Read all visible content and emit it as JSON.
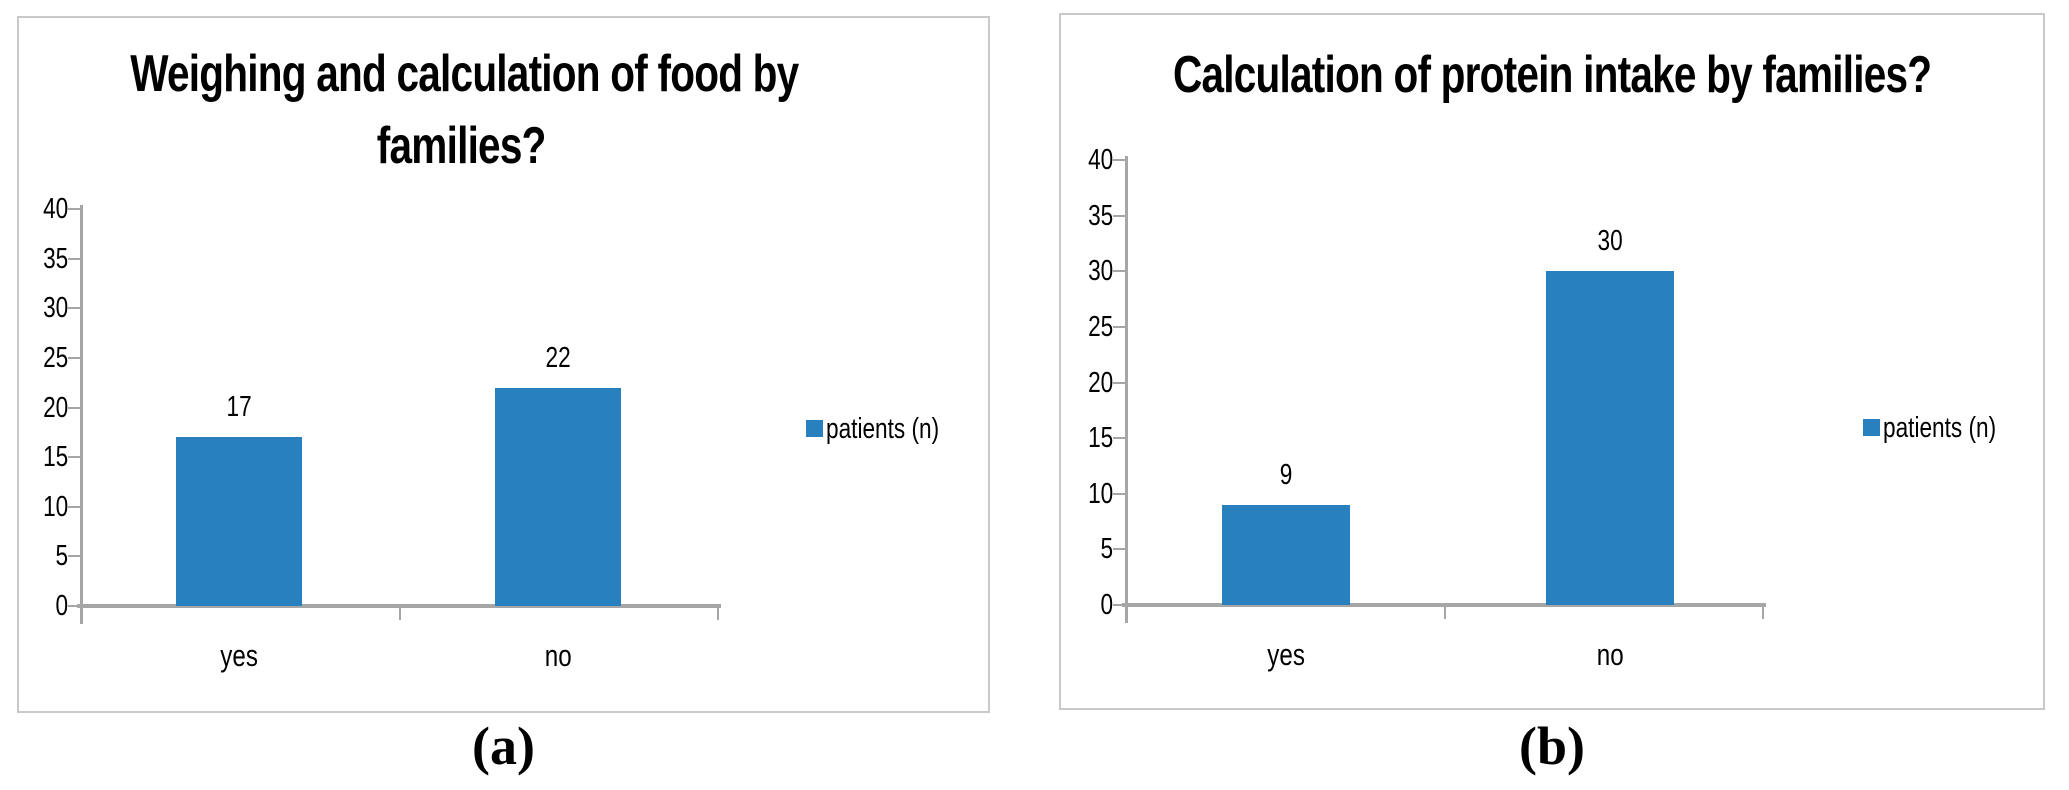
{
  "figure": {
    "panels": [
      {
        "caption": "(a)",
        "title_lines": [
          "Weighing and calculation of food by",
          "families?"
        ]
      },
      {
        "caption": "(b)",
        "title_lines": [
          "Calculation of protein intake by families?"
        ]
      }
    ]
  },
  "chart_data": [
    {
      "type": "bar",
      "title": "Weighing and calculation of food by families?",
      "categories": [
        "yes",
        "no"
      ],
      "values": [
        17,
        22
      ],
      "series": [
        {
          "name": "patients (n)",
          "values": [
            17,
            22
          ]
        }
      ],
      "data_labels": [
        "17",
        "22"
      ],
      "legend": "patients (n)",
      "legend_position": "right",
      "xlabel": "",
      "ylabel": "",
      "ylim": [
        0,
        40
      ],
      "ytick_step": 5,
      "grid": false
    },
    {
      "type": "bar",
      "title": "Calculation of protein intake by families?",
      "categories": [
        "yes",
        "no"
      ],
      "values": [
        9,
        30
      ],
      "series": [
        {
          "name": "patients (n)",
          "values": [
            9,
            30
          ]
        }
      ],
      "data_labels": [
        "9",
        "30"
      ],
      "legend": "patients (n)",
      "legend_position": "right",
      "xlabel": "",
      "ylabel": "",
      "ylim": [
        0,
        40
      ],
      "ytick_step": 5,
      "grid": false
    }
  ],
  "colors": {
    "bar": "#2881be",
    "axis": "#a6a6a6",
    "panel_border": "#c9c9c9",
    "text": "#000000",
    "background": "#ffffff"
  }
}
